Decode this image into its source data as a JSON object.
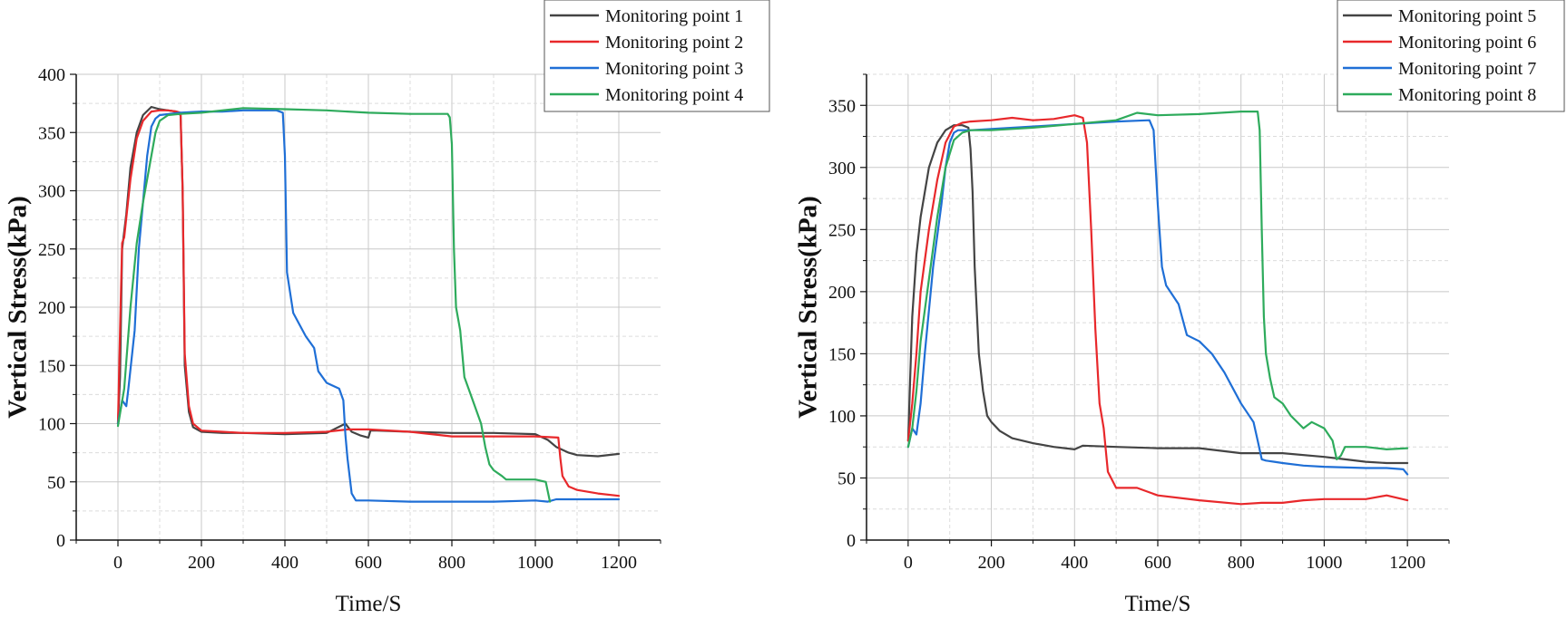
{
  "chart_data": [
    {
      "type": "line",
      "title": "",
      "xlabel": "Time/S",
      "ylabel": "Vertical Stress(kPa)",
      "xlim": [
        -100,
        1300
      ],
      "ylim": [
        0,
        400
      ],
      "xticks": [
        0,
        200,
        400,
        600,
        800,
        1000,
        1200
      ],
      "yticks": [
        0,
        50,
        100,
        150,
        200,
        250,
        300,
        350,
        400
      ],
      "grid": true,
      "legend_position": "top-right",
      "series": [
        {
          "name": "Monitoring point 1",
          "color": "#444444",
          "x": [
            0,
            5,
            10,
            20,
            30,
            45,
            60,
            80,
            100,
            120,
            140,
            150,
            155,
            160,
            170,
            180,
            200,
            250,
            300,
            400,
            500,
            545,
            560,
            580,
            600,
            605,
            610,
            620,
            700,
            800,
            900,
            1000,
            1030,
            1050,
            1080,
            1100,
            1150,
            1200
          ],
          "y": [
            100,
            140,
            250,
            280,
            320,
            350,
            365,
            372,
            370,
            369,
            368,
            365,
            300,
            150,
            110,
            97,
            93,
            92,
            92,
            91,
            92,
            100,
            93,
            90,
            88,
            94,
            94,
            94,
            93,
            92,
            92,
            91,
            86,
            80,
            75,
            73,
            72,
            74
          ]
        },
        {
          "name": "Monitoring point 2",
          "color": "#e8282b",
          "x": [
            0,
            5,
            10,
            15,
            30,
            45,
            60,
            80,
            100,
            120,
            140,
            150,
            155,
            160,
            170,
            180,
            200,
            250,
            300,
            400,
            500,
            550,
            600,
            700,
            800,
            900,
            1000,
            1055,
            1060,
            1065,
            1080,
            1100,
            1150,
            1200
          ],
          "y": [
            100,
            180,
            255,
            260,
            310,
            345,
            360,
            368,
            369,
            369,
            368,
            367,
            300,
            160,
            115,
            100,
            94,
            93,
            92,
            92,
            93,
            95,
            95,
            93,
            89,
            89,
            89,
            88,
            70,
            55,
            46,
            43,
            40,
            38
          ]
        },
        {
          "name": "Monitoring point 3",
          "color": "#1f6fd6",
          "x": [
            0,
            10,
            20,
            25,
            40,
            50,
            60,
            70,
            80,
            90,
            100,
            150,
            200,
            250,
            300,
            380,
            395,
            400,
            405,
            420,
            450,
            470,
            480,
            500,
            530,
            540,
            545,
            550,
            560,
            570,
            600,
            700,
            800,
            900,
            1000,
            1030,
            1050,
            1100,
            1200
          ],
          "y": [
            100,
            120,
            115,
            130,
            180,
            250,
            290,
            330,
            355,
            362,
            365,
            367,
            368,
            368,
            369,
            369,
            367,
            330,
            230,
            195,
            175,
            165,
            145,
            135,
            130,
            120,
            90,
            70,
            40,
            34,
            34,
            33,
            33,
            33,
            34,
            33,
            35,
            35,
            35
          ]
        },
        {
          "name": "Monitoring point 4",
          "color": "#2eab5c",
          "x": [
            0,
            15,
            30,
            45,
            60,
            80,
            90,
            100,
            120,
            150,
            200,
            300,
            400,
            500,
            600,
            700,
            790,
            795,
            800,
            805,
            810,
            820,
            830,
            840,
            850,
            870,
            880,
            890,
            900,
            920,
            930,
            1000,
            1025,
            1035
          ],
          "y": [
            98,
            130,
            200,
            255,
            290,
            330,
            350,
            360,
            365,
            366,
            367,
            371,
            370,
            369,
            367,
            366,
            366,
            363,
            340,
            250,
            200,
            180,
            140,
            130,
            120,
            100,
            80,
            65,
            60,
            55,
            52,
            52,
            50,
            33
          ]
        }
      ]
    },
    {
      "type": "line",
      "title": "",
      "xlabel": "Time/S",
      "ylabel": "Vertical Stress(kPa)",
      "xlim": [
        -100,
        1300
      ],
      "ylim": [
        0,
        375
      ],
      "xticks": [
        0,
        200,
        400,
        600,
        800,
        1000,
        1200
      ],
      "yticks": [
        0,
        50,
        100,
        150,
        200,
        250,
        300,
        350
      ],
      "grid": true,
      "legend_position": "top-right",
      "series": [
        {
          "name": "Monitoring point 5",
          "color": "#444444",
          "x": [
            0,
            5,
            10,
            20,
            30,
            50,
            70,
            90,
            110,
            130,
            145,
            150,
            155,
            160,
            170,
            180,
            190,
            200,
            220,
            250,
            300,
            350,
            400,
            420,
            500,
            600,
            700,
            800,
            900,
            1000,
            1050,
            1100,
            1150,
            1200
          ],
          "y": [
            80,
            130,
            180,
            230,
            260,
            300,
            320,
            330,
            334,
            334,
            332,
            315,
            280,
            220,
            150,
            120,
            100,
            95,
            88,
            82,
            78,
            75,
            73,
            76,
            75,
            74,
            74,
            70,
            70,
            67,
            65,
            63,
            62,
            62
          ]
        },
        {
          "name": "Monitoring point 6",
          "color": "#e8282b",
          "x": [
            0,
            10,
            20,
            30,
            50,
            70,
            90,
            110,
            130,
            150,
            200,
            250,
            300,
            350,
            400,
            420,
            430,
            440,
            450,
            460,
            470,
            480,
            500,
            550,
            600,
            700,
            800,
            850,
            900,
            950,
            1000,
            1100,
            1150,
            1200
          ],
          "y": [
            80,
            110,
            150,
            200,
            250,
            290,
            320,
            333,
            336,
            337,
            338,
            340,
            338,
            339,
            342,
            340,
            320,
            250,
            170,
            110,
            90,
            55,
            42,
            42,
            36,
            32,
            29,
            30,
            30,
            32,
            33,
            33,
            36,
            32
          ]
        },
        {
          "name": "Monitoring point 7",
          "color": "#1f6fd6",
          "x": [
            0,
            10,
            20,
            30,
            40,
            60,
            80,
            90,
            100,
            110,
            120,
            150,
            200,
            300,
            400,
            500,
            580,
            590,
            595,
            600,
            610,
            620,
            650,
            670,
            700,
            730,
            760,
            800,
            830,
            840,
            850,
            860,
            880,
            900,
            950,
            1000,
            1100,
            1150,
            1190,
            1200
          ],
          "y": [
            75,
            90,
            85,
            110,
            150,
            220,
            270,
            300,
            320,
            328,
            330,
            330,
            331,
            333,
            335,
            337,
            338,
            330,
            300,
            270,
            220,
            205,
            190,
            165,
            160,
            150,
            135,
            110,
            95,
            80,
            65,
            64,
            63,
            62,
            60,
            59,
            58,
            58,
            57,
            53
          ]
        },
        {
          "name": "Monitoring point 8",
          "color": "#2eab5c",
          "x": [
            0,
            10,
            20,
            30,
            50,
            70,
            90,
            110,
            130,
            150,
            200,
            300,
            400,
            500,
            550,
            600,
            700,
            800,
            840,
            845,
            850,
            855,
            860,
            870,
            880,
            900,
            920,
            950,
            970,
            1000,
            1020,
            1030,
            1040,
            1050,
            1100,
            1150,
            1200
          ],
          "y": [
            75,
            90,
            120,
            160,
            210,
            260,
            300,
            322,
            328,
            330,
            330,
            332,
            335,
            338,
            344,
            342,
            343,
            345,
            345,
            330,
            250,
            180,
            150,
            130,
            115,
            110,
            100,
            90,
            95,
            90,
            80,
            65,
            68,
            75,
            75,
            73,
            74
          ]
        }
      ]
    }
  ]
}
